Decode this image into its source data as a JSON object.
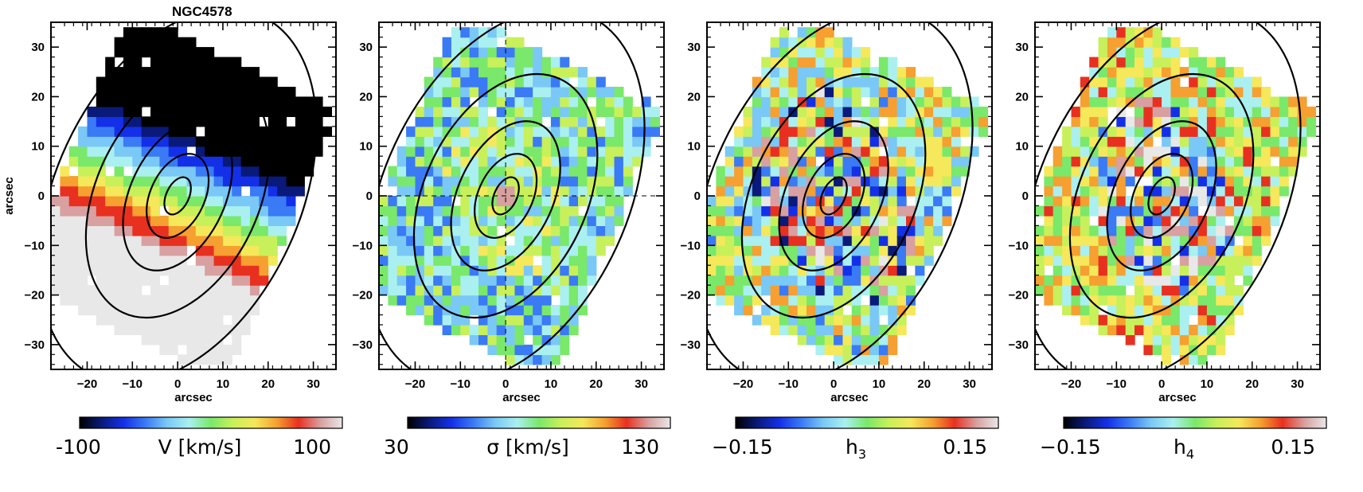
{
  "chart_data": {
    "type": "heatmap",
    "title": "NGC4578",
    "xlabel": "arcsec",
    "ylabel": "arcsec",
    "xlim": [
      -28,
      35
    ],
    "ylim": [
      -35,
      35
    ],
    "xticks": [
      -20,
      -10,
      0,
      10,
      20,
      30
    ],
    "yticks": [
      -30,
      -20,
      -10,
      0,
      10,
      20,
      30
    ],
    "isophote_semi_axes": [
      {
        "a": 2.5,
        "b": 4.0
      },
      {
        "a": 6.0,
        "b": 9.0
      },
      {
        "a": 10.5,
        "b": 16.0
      },
      {
        "a": 18.0,
        "b": 26.0
      },
      {
        "a": 27.0,
        "b": 40.0
      }
    ],
    "isophote_position_angle_deg": 25,
    "panels": [
      {
        "quantity": "V",
        "colorbar_min": "-100",
        "colorbar_max": "100",
        "colorbar_label": "V [km/s]",
        "vmin": -100,
        "vmax": 100,
        "pattern": "rotation",
        "crosshair": false
      },
      {
        "quantity": "sigma",
        "colorbar_min": "30",
        "colorbar_max": "130",
        "colorbar_label": "σ [km/s]",
        "vmin": 30,
        "vmax": 130,
        "pattern": "dispersion",
        "crosshair": true
      },
      {
        "quantity": "h3",
        "colorbar_min": "−0.15",
        "colorbar_max": "0.15",
        "colorbar_label": "h",
        "colorbar_label_sub": "3",
        "vmin": -0.15,
        "vmax": 0.15,
        "pattern": "noise_h3",
        "crosshair": false
      },
      {
        "quantity": "h4",
        "colorbar_min": "−0.15",
        "colorbar_max": "0.15",
        "colorbar_label": "h",
        "colorbar_label_sub": "4",
        "vmin": -0.15,
        "vmax": 0.15,
        "pattern": "noise_h4",
        "crosshair": false
      }
    ],
    "colormap": [
      "#000000",
      "#0a1a7a",
      "#1330e8",
      "#3a7af5",
      "#7ac8f5",
      "#aaf0f0",
      "#7ae86a",
      "#c8f05a",
      "#f5e85a",
      "#f5a030",
      "#e83020",
      "#d8a0a0",
      "#e8e8e8"
    ]
  }
}
